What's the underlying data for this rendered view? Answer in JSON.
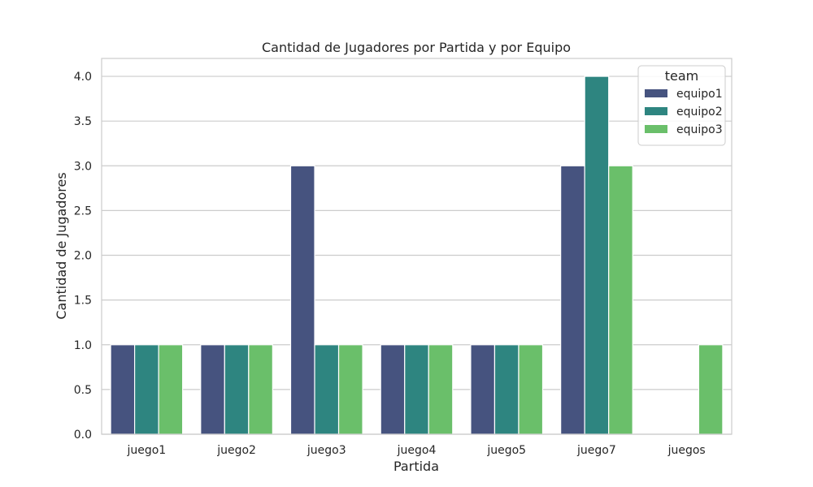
{
  "chart_data": {
    "type": "bar",
    "title": "Cantidad de Jugadores por Partida y por Equipo",
    "xlabel": "Partida",
    "ylabel": "Cantidad de Jugadores",
    "categories": [
      "juego1",
      "juego2",
      "juego3",
      "juego4",
      "juego5",
      "juego7",
      "juegos"
    ],
    "series": [
      {
        "name": "equipo1",
        "color": "#46537f",
        "values": [
          1,
          1,
          3,
          1,
          1,
          3,
          0
        ]
      },
      {
        "name": "equipo2",
        "color": "#2e8580",
        "values": [
          1,
          1,
          1,
          1,
          1,
          4,
          0
        ]
      },
      {
        "name": "equipo3",
        "color": "#6abf6a",
        "values": [
          1,
          1,
          1,
          1,
          1,
          3,
          1
        ]
      }
    ],
    "ylim": [
      0,
      4.2
    ],
    "yticks": [
      "0.0",
      "0.5",
      "1.0",
      "1.5",
      "2.0",
      "2.5",
      "3.0",
      "3.5",
      "4.0"
    ],
    "grid": true,
    "legend": {
      "title": "team",
      "position": "top-right"
    }
  }
}
